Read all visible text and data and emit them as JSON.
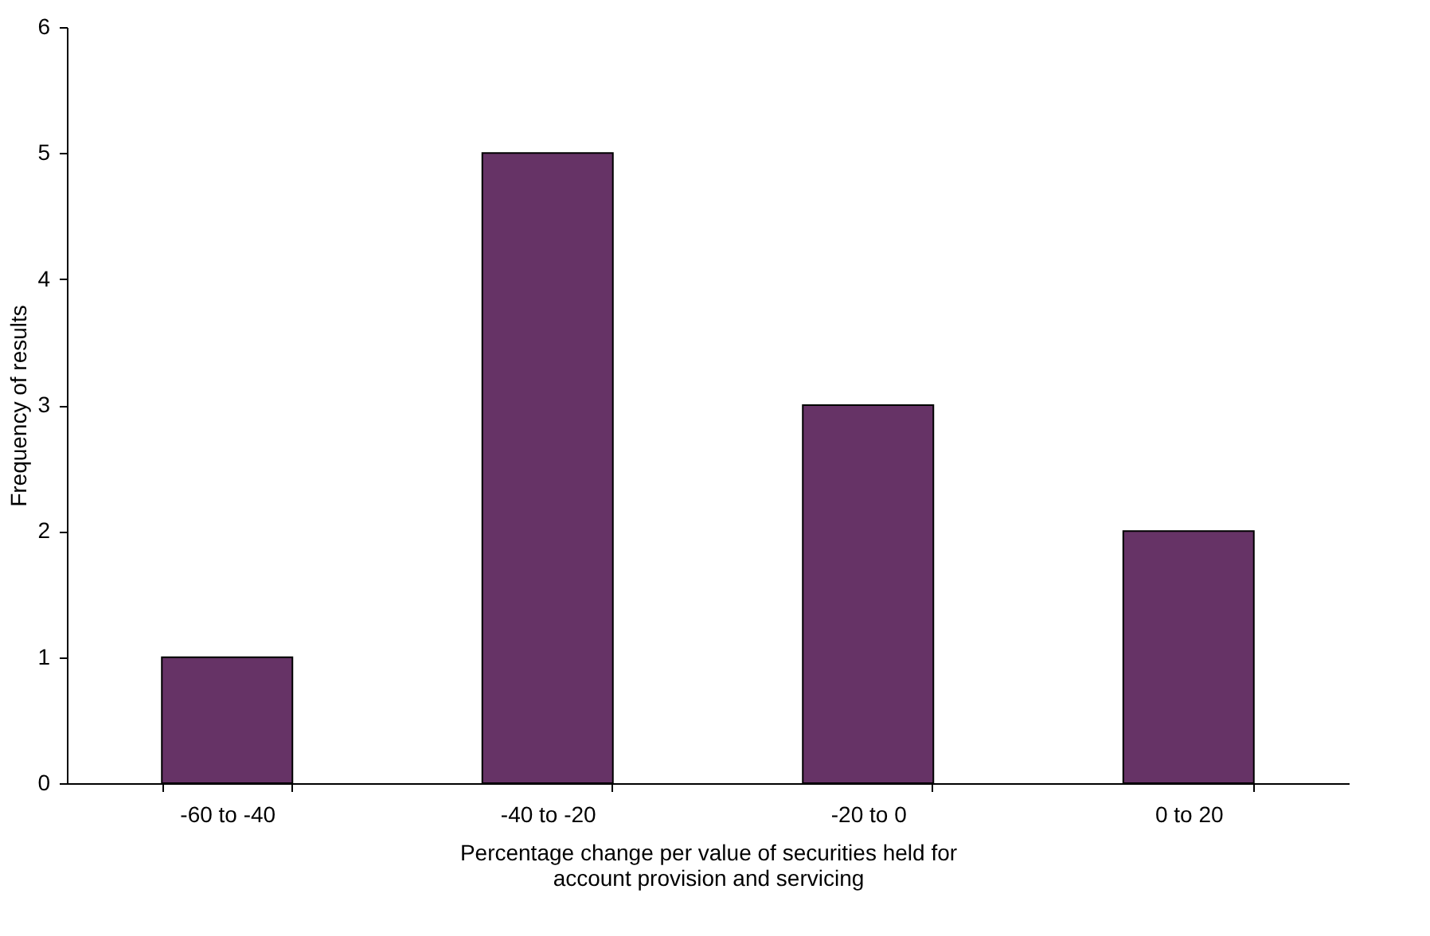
{
  "chart_data": {
    "type": "bar",
    "categories": [
      "-60 to -40",
      "-40 to -20",
      "-20 to 0",
      "0 to 20"
    ],
    "values": [
      1,
      5,
      3,
      2
    ],
    "color": "#663366",
    "xlabel": "Percentage change per value of securities held for account provision and servicing",
    "ylabel": "Frequency of results",
    "ylim": [
      0,
      6
    ],
    "yticks": [
      0,
      1,
      2,
      3,
      4,
      5,
      6
    ],
    "grid": false,
    "legend": false
  }
}
